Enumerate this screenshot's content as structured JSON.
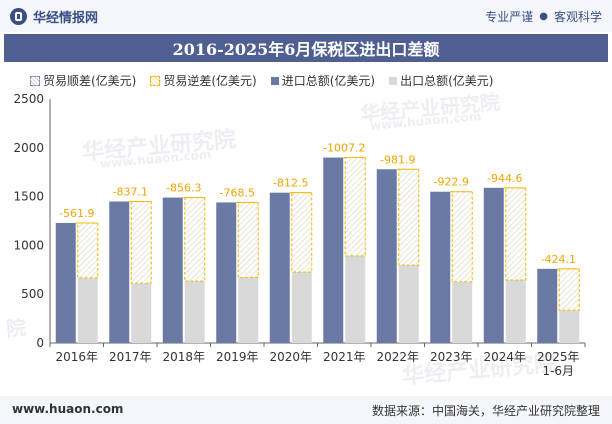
{
  "header": {
    "brand": "华经情报网",
    "tag_1": "专业严谨",
    "tag_sep": "●",
    "tag_2": "客观科学"
  },
  "watermark": {
    "cn": "华经产业研究院",
    "url": "www.huaon.com",
    "short": "院"
  },
  "footer": {
    "site": "www.huaon.com",
    "source": "数据来源：中国海关，华经产业研究院整理"
  },
  "chart_data": {
    "type": "bar",
    "title": "2016-2025年6月保税区进出口差额",
    "categories": [
      "2016年",
      "2017年",
      "2018年",
      "2019年",
      "2020年",
      "2021年",
      "2022年",
      "2023年",
      "2024年",
      "2025年\n1-6月"
    ],
    "series": [
      {
        "name": "贸易顺差(亿美元)",
        "values": [
          null,
          null,
          null,
          null,
          null,
          null,
          null,
          null,
          null,
          null
        ]
      },
      {
        "name": "贸易逆差(亿美元)",
        "values": [
          -561.9,
          -837.1,
          -856.3,
          -768.5,
          -812.5,
          -1007.2,
          -981.9,
          -922.9,
          -944.6,
          -424.1
        ]
      },
      {
        "name": "进口总额(亿美元)",
        "values": [
          1230,
          1450,
          1490,
          1440,
          1540,
          1900,
          1780,
          1550,
          1590,
          760
        ]
      },
      {
        "name": "出口总额(亿美元)",
        "values": [
          668,
          613,
          634,
          672,
          728,
          893,
          798,
          627,
          645,
          336
        ]
      }
    ],
    "ylim": [
      0,
      2500
    ],
    "yticks": [
      0,
      500,
      1000,
      1500,
      2000,
      2500
    ],
    "legend_position": "top",
    "colors": {
      "import": "#6a7aa4",
      "export": "#d9d9d9",
      "deficit_border": "#f0b800",
      "label": "#f0a400"
    }
  }
}
